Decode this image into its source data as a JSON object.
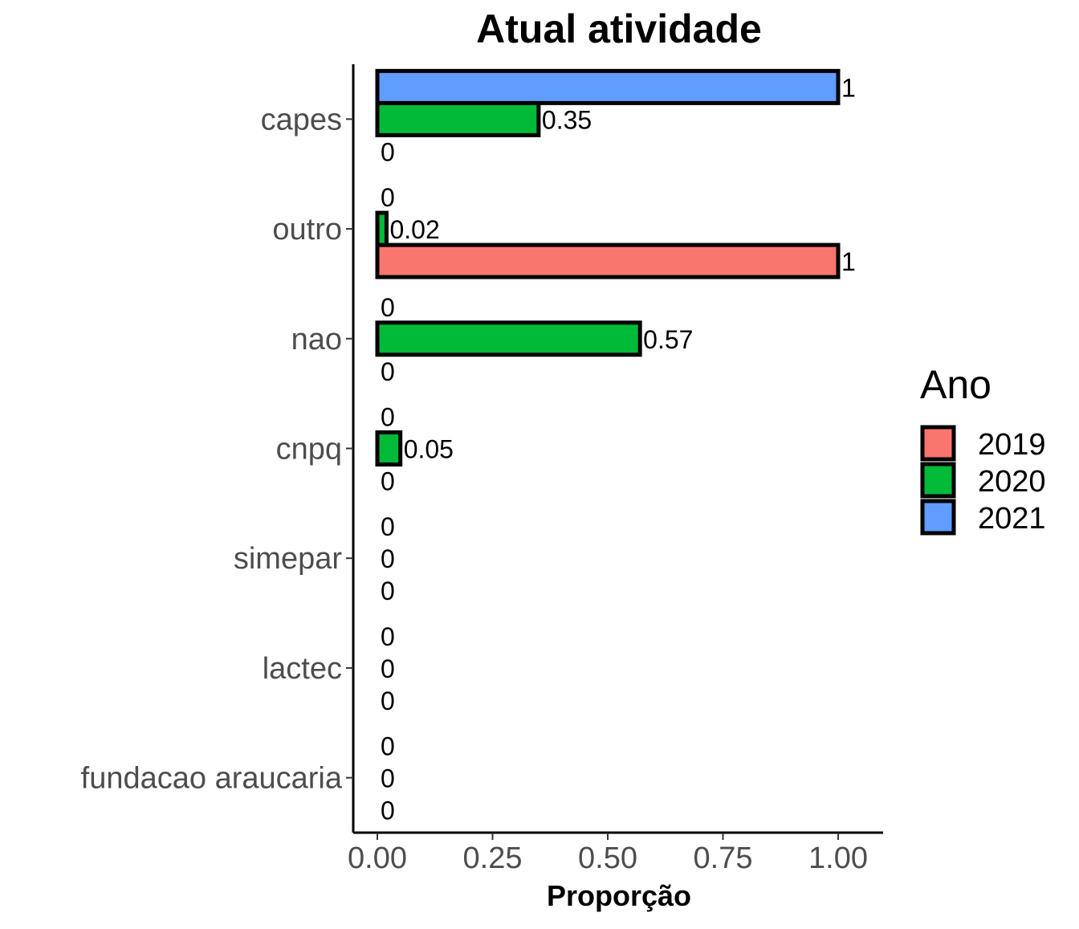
{
  "chart_data": {
    "type": "bar",
    "orientation": "horizontal",
    "title": "Atual atividade",
    "xlabel": "Proporção",
    "ylabel": "",
    "xlim": [
      -0.05,
      1.1
    ],
    "x_ticks": [
      0,
      0.25,
      0.5,
      0.75,
      1
    ],
    "x_tick_labels": [
      "0.00",
      "0.25",
      "0.50",
      "0.75",
      "1.00"
    ],
    "categories": [
      "capes",
      "outro",
      "nao",
      "cnpq",
      "simepar",
      "lactec",
      "fundacao araucaria"
    ],
    "series": [
      {
        "name": "2019",
        "color": "#F8766D",
        "values": [
          0,
          1,
          0,
          0,
          0,
          0,
          0
        ],
        "labels": [
          "0",
          "1",
          "0",
          "0",
          "0",
          "0",
          "0"
        ]
      },
      {
        "name": "2020",
        "color": "#00BA38",
        "values": [
          0.35,
          0.02,
          0.57,
          0.05,
          0,
          0,
          0
        ],
        "labels": [
          "0.35",
          "0.02",
          "0.57",
          "0.05",
          "0",
          "0",
          "0"
        ]
      },
      {
        "name": "2021",
        "color": "#619CFF",
        "values": [
          1,
          0,
          0,
          0,
          0,
          0,
          0
        ],
        "labels": [
          "1",
          "0",
          "0",
          "0",
          "0",
          "0",
          "0"
        ]
      }
    ],
    "legend": {
      "title": "Ano",
      "position": "right"
    },
    "grid": false
  }
}
